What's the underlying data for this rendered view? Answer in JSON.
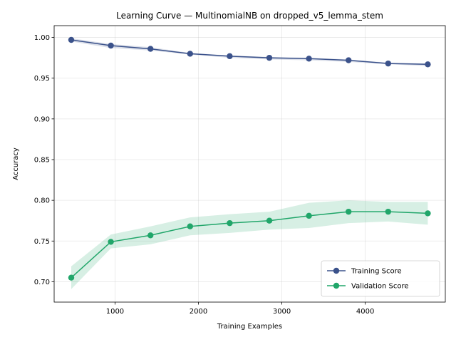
{
  "chart_data": {
    "type": "line",
    "title": "Learning Curve — MultinomialNB on dropped_v5_lemma_stem",
    "xlabel": "Training Examples",
    "ylabel": "Accuracy",
    "xlim": [
      270,
      4960
    ],
    "ylim": [
      0.675,
      1.0145
    ],
    "xticks": [
      1000,
      2000,
      3000,
      4000
    ],
    "yticks": [
      0.7,
      0.75,
      0.8,
      0.85,
      0.9,
      0.95,
      1.0
    ],
    "grid": true,
    "legend_position": "lower-right",
    "x": [
      475,
      950,
      1425,
      1900,
      2375,
      2850,
      3325,
      3800,
      4275,
      4750
    ],
    "series": [
      {
        "name": "Training Score",
        "color": "#3b528b",
        "values": [
          0.997,
          0.99,
          0.986,
          0.98,
          0.977,
          0.975,
          0.974,
          0.972,
          0.968,
          0.967
        ],
        "band_low": [
          0.995,
          0.987,
          0.984,
          0.979,
          0.975,
          0.973,
          0.972,
          0.97,
          0.967,
          0.965
        ],
        "band_high": [
          0.999,
          0.992,
          0.988,
          0.981,
          0.978,
          0.976,
          0.975,
          0.973,
          0.969,
          0.968
        ]
      },
      {
        "name": "Validation Score",
        "color": "#21a66a",
        "values": [
          0.705,
          0.749,
          0.757,
          0.768,
          0.772,
          0.775,
          0.781,
          0.786,
          0.786,
          0.784
        ],
        "band_low": [
          0.691,
          0.741,
          0.746,
          0.757,
          0.76,
          0.764,
          0.766,
          0.772,
          0.774,
          0.77
        ],
        "band_high": [
          0.719,
          0.758,
          0.768,
          0.779,
          0.783,
          0.786,
          0.797,
          0.8,
          0.798,
          0.798
        ]
      }
    ]
  }
}
